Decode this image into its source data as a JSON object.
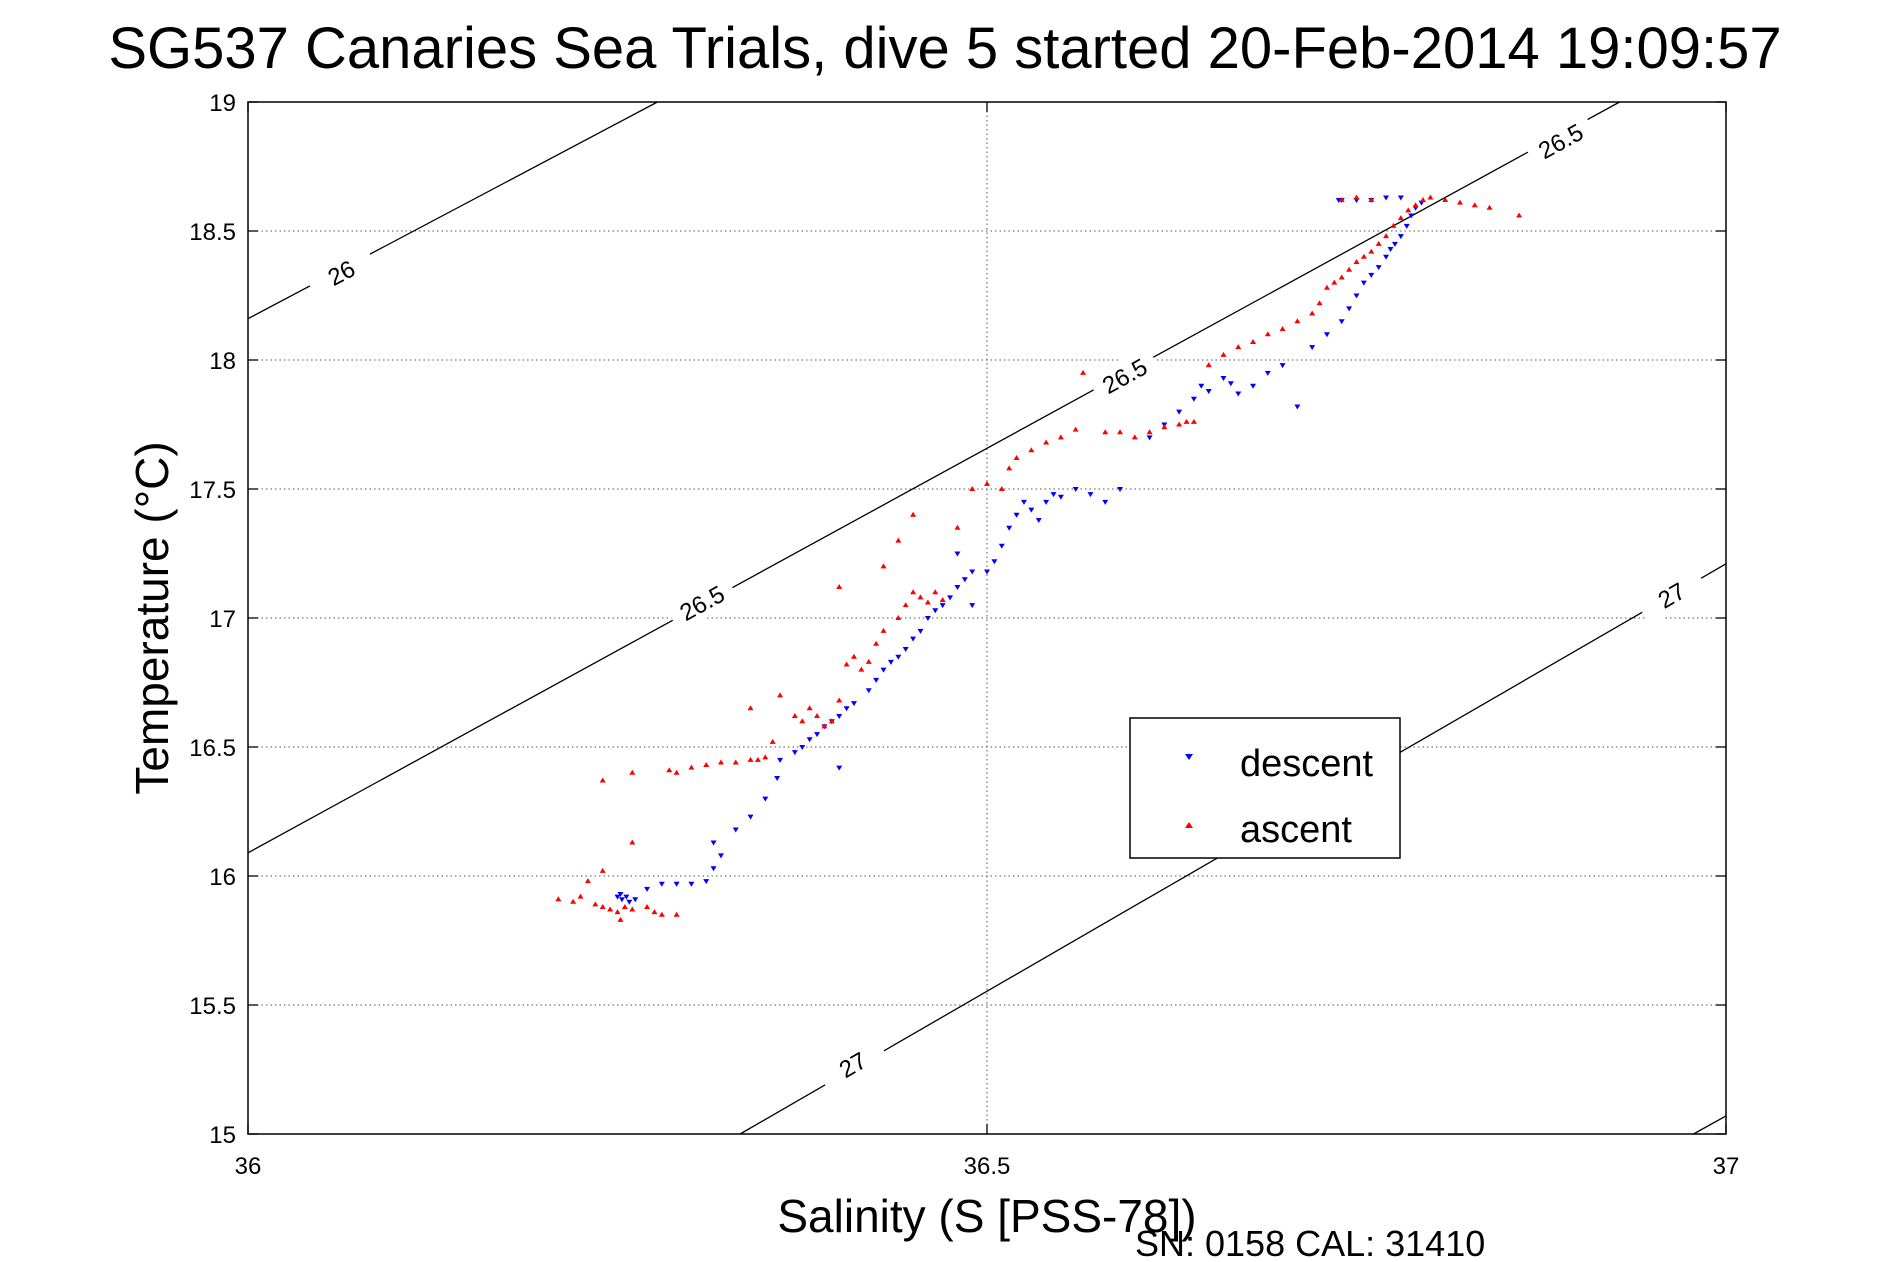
{
  "chart_data": {
    "type": "scatter",
    "title": "SG537 Canaries Sea Trials, dive 5 started 20-Feb-2014 19:09:57",
    "xlabel": "Salinity (S [PSS-78])",
    "ylabel": "Temperature (°C)",
    "footer": "SN: 0158  CAL: 31410",
    "xlim": [
      36,
      37
    ],
    "ylim": [
      15,
      19
    ],
    "xticks": [
      "36",
      "36.5",
      "37"
    ],
    "yticks": [
      "15",
      "15.5",
      "16",
      "16.5",
      "17",
      "17.5",
      "18",
      "18.5",
      "19"
    ],
    "grid": true,
    "legend_position": "lower-right-center",
    "contour_lines": [
      {
        "label": "26",
        "points": [
          [
            36.0,
            18.16
          ],
          [
            36.277,
            19.0
          ]
        ],
        "label_at": [
          36.063,
          18.34
        ]
      },
      {
        "label": "26.5",
        "points": [
          [
            36.0,
            16.09
          ],
          [
            36.928,
            19.0
          ]
        ],
        "label_at": [
          [
            36.307,
            17.06
          ],
          [
            36.593,
            17.94
          ],
          [
            36.888,
            18.85
          ]
        ]
      },
      {
        "label": "27",
        "points": [
          [
            36.333,
            15.0
          ],
          [
            37.0,
            17.21
          ]
        ],
        "label_at": [
          [
            36.409,
            15.27
          ],
          [
            36.963,
            17.09
          ]
        ]
      },
      {
        "label": "",
        "points": [
          [
            36.978,
            15.0
          ],
          [
            37.0,
            15.07
          ]
        ]
      }
    ],
    "series": [
      {
        "name": "descent",
        "color": "#0000ff",
        "marker": "triangle-down",
        "points": [
          [
            36.25,
            15.92
          ],
          [
            36.253,
            15.91
          ],
          [
            36.256,
            15.92
          ],
          [
            36.258,
            15.9
          ],
          [
            36.252,
            15.93
          ],
          [
            36.262,
            15.91
          ],
          [
            36.27,
            15.95
          ],
          [
            36.28,
            15.97
          ],
          [
            36.29,
            15.97
          ],
          [
            36.3,
            15.97
          ],
          [
            36.31,
            15.98
          ],
          [
            36.315,
            16.03
          ],
          [
            36.32,
            16.08
          ],
          [
            36.315,
            16.13
          ],
          [
            36.33,
            16.18
          ],
          [
            36.34,
            16.23
          ],
          [
            36.35,
            16.3
          ],
          [
            36.358,
            16.38
          ],
          [
            36.36,
            16.45
          ],
          [
            36.37,
            16.48
          ],
          [
            36.375,
            16.5
          ],
          [
            36.38,
            16.53
          ],
          [
            36.385,
            16.55
          ],
          [
            36.39,
            16.58
          ],
          [
            36.395,
            16.6
          ],
          [
            36.4,
            16.62
          ],
          [
            36.405,
            16.65
          ],
          [
            36.41,
            16.67
          ],
          [
            36.4,
            16.42
          ],
          [
            36.42,
            16.72
          ],
          [
            36.425,
            16.76
          ],
          [
            36.43,
            16.8
          ],
          [
            36.435,
            16.83
          ],
          [
            36.44,
            16.85
          ],
          [
            36.445,
            16.88
          ],
          [
            36.45,
            16.92
          ],
          [
            36.455,
            16.95
          ],
          [
            36.46,
            17.0
          ],
          [
            36.465,
            17.03
          ],
          [
            36.47,
            17.05
          ],
          [
            36.475,
            17.08
          ],
          [
            36.48,
            17.12
          ],
          [
            36.485,
            17.15
          ],
          [
            36.49,
            17.18
          ],
          [
            36.48,
            17.25
          ],
          [
            36.49,
            17.05
          ],
          [
            36.5,
            17.18
          ],
          [
            36.505,
            17.22
          ],
          [
            36.51,
            17.28
          ],
          [
            36.515,
            17.35
          ],
          [
            36.52,
            17.4
          ],
          [
            36.525,
            17.45
          ],
          [
            36.53,
            17.42
          ],
          [
            36.535,
            17.38
          ],
          [
            36.54,
            17.45
          ],
          [
            36.545,
            17.48
          ],
          [
            36.55,
            17.47
          ],
          [
            36.56,
            17.5
          ],
          [
            36.57,
            17.48
          ],
          [
            36.58,
            17.45
          ],
          [
            36.59,
            17.5
          ],
          [
            36.61,
            17.7
          ],
          [
            36.62,
            17.75
          ],
          [
            36.63,
            17.8
          ],
          [
            36.64,
            17.85
          ],
          [
            36.645,
            17.9
          ],
          [
            36.65,
            17.88
          ],
          [
            36.66,
            17.93
          ],
          [
            36.665,
            17.91
          ],
          [
            36.67,
            17.87
          ],
          [
            36.68,
            17.9
          ],
          [
            36.69,
            17.95
          ],
          [
            36.7,
            17.98
          ],
          [
            36.72,
            18.05
          ],
          [
            36.73,
            18.1
          ],
          [
            36.71,
            17.82
          ],
          [
            36.74,
            18.15
          ],
          [
            36.745,
            18.2
          ],
          [
            36.75,
            18.25
          ],
          [
            36.755,
            18.3
          ],
          [
            36.76,
            18.33
          ],
          [
            36.765,
            18.36
          ],
          [
            36.77,
            18.4
          ],
          [
            36.773,
            18.43
          ],
          [
            36.776,
            18.45
          ],
          [
            36.78,
            18.48
          ],
          [
            36.784,
            18.52
          ],
          [
            36.787,
            18.56
          ],
          [
            36.79,
            18.59
          ],
          [
            36.794,
            18.61
          ],
          [
            36.78,
            18.63
          ],
          [
            36.77,
            18.63
          ],
          [
            36.76,
            18.62
          ],
          [
            36.75,
            18.62
          ],
          [
            36.74,
            18.62
          ],
          [
            36.738,
            18.62
          ]
        ]
      },
      {
        "name": "ascent",
        "color": "#ff0000",
        "marker": "triangle-up",
        "points": [
          [
            36.21,
            15.91
          ],
          [
            36.22,
            15.9
          ],
          [
            36.225,
            15.92
          ],
          [
            36.235,
            15.89
          ],
          [
            36.24,
            15.88
          ],
          [
            36.245,
            15.87
          ],
          [
            36.25,
            15.86
          ],
          [
            36.255,
            15.88
          ],
          [
            36.26,
            15.87
          ],
          [
            36.252,
            15.83
          ],
          [
            36.27,
            15.88
          ],
          [
            36.275,
            15.86
          ],
          [
            36.28,
            15.85
          ],
          [
            36.29,
            15.85
          ],
          [
            36.23,
            15.98
          ],
          [
            36.24,
            16.02
          ],
          [
            36.26,
            16.13
          ],
          [
            36.24,
            16.37
          ],
          [
            36.26,
            16.4
          ],
          [
            36.285,
            16.41
          ],
          [
            36.29,
            16.4
          ],
          [
            36.3,
            16.42
          ],
          [
            36.31,
            16.43
          ],
          [
            36.32,
            16.44
          ],
          [
            36.33,
            16.44
          ],
          [
            36.34,
            16.45
          ],
          [
            36.345,
            16.45
          ],
          [
            36.35,
            16.46
          ],
          [
            36.355,
            16.52
          ],
          [
            36.34,
            16.65
          ],
          [
            36.36,
            16.7
          ],
          [
            36.37,
            16.62
          ],
          [
            36.375,
            16.6
          ],
          [
            36.38,
            16.65
          ],
          [
            36.385,
            16.62
          ],
          [
            36.39,
            16.58
          ],
          [
            36.395,
            16.6
          ],
          [
            36.4,
            16.68
          ],
          [
            36.405,
            16.82
          ],
          [
            36.41,
            16.85
          ],
          [
            36.415,
            16.8
          ],
          [
            36.42,
            16.83
          ],
          [
            36.425,
            16.9
          ],
          [
            36.43,
            16.95
          ],
          [
            36.44,
            17.0
          ],
          [
            36.445,
            17.05
          ],
          [
            36.45,
            17.1
          ],
          [
            36.455,
            17.08
          ],
          [
            36.46,
            17.06
          ],
          [
            36.465,
            17.1
          ],
          [
            36.47,
            17.07
          ],
          [
            36.4,
            17.12
          ],
          [
            36.43,
            17.2
          ],
          [
            36.44,
            17.3
          ],
          [
            36.45,
            17.4
          ],
          [
            36.48,
            17.35
          ],
          [
            36.49,
            17.5
          ],
          [
            36.5,
            17.52
          ],
          [
            36.51,
            17.5
          ],
          [
            36.515,
            17.58
          ],
          [
            36.52,
            17.62
          ],
          [
            36.53,
            17.65
          ],
          [
            36.54,
            17.68
          ],
          [
            36.55,
            17.7
          ],
          [
            36.56,
            17.73
          ],
          [
            36.565,
            17.95
          ],
          [
            36.58,
            17.72
          ],
          [
            36.59,
            17.72
          ],
          [
            36.6,
            17.7
          ],
          [
            36.61,
            17.72
          ],
          [
            36.62,
            17.74
          ],
          [
            36.63,
            17.75
          ],
          [
            36.635,
            17.76
          ],
          [
            36.64,
            17.76
          ],
          [
            36.65,
            17.98
          ],
          [
            36.66,
            18.02
          ],
          [
            36.67,
            18.05
          ],
          [
            36.68,
            18.07
          ],
          [
            36.69,
            18.1
          ],
          [
            36.7,
            18.12
          ],
          [
            36.71,
            18.15
          ],
          [
            36.72,
            18.18
          ],
          [
            36.725,
            18.22
          ],
          [
            36.73,
            18.28
          ],
          [
            36.735,
            18.3
          ],
          [
            36.74,
            18.32
          ],
          [
            36.745,
            18.35
          ],
          [
            36.75,
            18.38
          ],
          [
            36.755,
            18.4
          ],
          [
            36.76,
            18.42
          ],
          [
            36.765,
            18.45
          ],
          [
            36.77,
            18.48
          ],
          [
            36.775,
            18.52
          ],
          [
            36.78,
            18.55
          ],
          [
            36.785,
            18.58
          ],
          [
            36.79,
            18.6
          ],
          [
            36.795,
            18.62
          ],
          [
            36.8,
            18.63
          ],
          [
            36.81,
            18.62
          ],
          [
            36.82,
            18.61
          ],
          [
            36.83,
            18.6
          ],
          [
            36.84,
            18.59
          ],
          [
            36.86,
            18.56
          ],
          [
            36.74,
            18.62
          ],
          [
            36.75,
            18.63
          ],
          [
            36.76,
            18.62
          ]
        ]
      }
    ]
  }
}
